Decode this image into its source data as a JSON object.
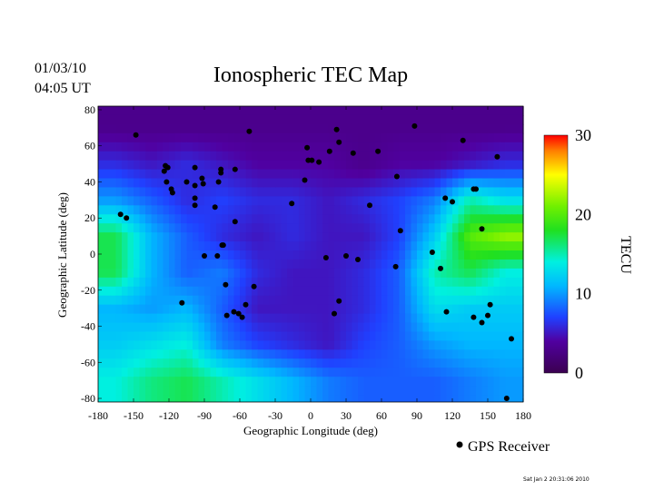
{
  "header": {
    "date": "01/03/10",
    "time": "04:05 UT",
    "footer_timestamp": "Sat Jan  2 20:31:06 2010"
  },
  "chart_data": {
    "type": "heatmap",
    "title": "Ionospheric TEC Map",
    "xlabel": "Geographic Longitude (deg)",
    "ylabel": "Geographic Latitude (deg)",
    "xlim": [
      -180,
      180
    ],
    "ylim": [
      -82,
      82
    ],
    "xticks": [
      "-180",
      "-150",
      "-120",
      "-90",
      "-60",
      "-30",
      "0",
      "30",
      "60",
      "90",
      "120",
      "150",
      "180"
    ],
    "yticks": [
      "80",
      "60",
      "40",
      "20",
      "0",
      "-20",
      "-40",
      "-60",
      "-80"
    ],
    "colorbar": {
      "label": "TECU",
      "range": [
        0,
        30
      ],
      "ticks": [
        "30",
        "20",
        "10",
        "0"
      ],
      "colormap": [
        [
          0,
          "#3b0050"
        ],
        [
          4,
          "#5000a0"
        ],
        [
          7,
          "#2040ff"
        ],
        [
          11,
          "#00b8ff"
        ],
        [
          14,
          "#00f0e0"
        ],
        [
          18,
          "#20e020"
        ],
        [
          21,
          "#70f000"
        ],
        [
          25,
          "#ffff00"
        ],
        [
          28,
          "#ff8000"
        ],
        [
          30,
          "#ff0000"
        ]
      ]
    },
    "grid_lon": [
      -165,
      -135,
      -105,
      -75,
      -45,
      -15,
      15,
      45,
      75,
      105,
      135,
      165
    ],
    "grid_lat": [
      70,
      50,
      30,
      10,
      -10,
      -30,
      -50,
      -70
    ],
    "tec_values": [
      [
        3,
        3,
        3,
        3,
        3,
        3,
        3,
        3,
        3,
        3,
        3,
        3
      ],
      [
        6,
        5,
        6,
        5,
        4,
        4,
        4,
        3,
        4,
        4,
        5,
        6
      ],
      [
        10,
        8,
        6,
        7,
        6,
        6,
        5,
        6,
        7,
        9,
        15,
        13
      ],
      [
        17,
        11,
        8,
        6,
        5,
        6,
        5,
        5,
        7,
        12,
        20,
        22
      ],
      [
        17,
        11,
        8,
        9,
        6,
        5,
        5,
        6,
        8,
        15,
        17,
        14
      ],
      [
        11,
        10,
        11,
        8,
        5,
        5,
        5,
        6,
        8,
        13,
        12,
        12
      ],
      [
        12,
        13,
        14,
        9,
        7,
        6,
        5,
        7,
        8,
        10,
        11,
        11
      ],
      [
        14,
        16,
        17,
        15,
        13,
        11,
        9,
        8,
        8,
        8,
        9,
        10
      ]
    ],
    "legend": {
      "marker": "black-dot",
      "label": "GPS Receiver",
      "position": "bottom-right"
    },
    "gps_receivers": [
      [
        -148,
        66
      ],
      [
        -161,
        22
      ],
      [
        -156,
        20
      ],
      [
        -123,
        49
      ],
      [
        -121,
        48
      ],
      [
        -124,
        46
      ],
      [
        -122,
        40
      ],
      [
        -118,
        36
      ],
      [
        -117,
        34
      ],
      [
        -109,
        -27
      ],
      [
        -98,
        48
      ],
      [
        -105,
        40
      ],
      [
        -98,
        38
      ],
      [
        -92,
        42
      ],
      [
        -91,
        39
      ],
      [
        -98,
        31
      ],
      [
        -98,
        27
      ],
      [
        -76,
        47
      ],
      [
        -76,
        45
      ],
      [
        -64,
        47
      ],
      [
        -78,
        40
      ],
      [
        -81,
        26
      ],
      [
        -64,
        18
      ],
      [
        -74,
        5
      ],
      [
        -90,
        -1
      ],
      [
        -79,
        -1
      ],
      [
        -75,
        5
      ],
      [
        -72,
        -17
      ],
      [
        -71,
        -34
      ],
      [
        -65,
        -32
      ],
      [
        -61,
        -33
      ],
      [
        -58,
        -35
      ],
      [
        -55,
        -28
      ],
      [
        -48,
        -18
      ],
      [
        -52,
        68
      ],
      [
        -16,
        28
      ],
      [
        -5,
        41
      ],
      [
        -2,
        52
      ],
      [
        -3,
        59
      ],
      [
        1,
        52
      ],
      [
        7,
        51
      ],
      [
        22,
        69
      ],
      [
        24,
        62
      ],
      [
        16,
        57
      ],
      [
        36,
        56
      ],
      [
        57,
        57
      ],
      [
        50,
        27
      ],
      [
        73,
        43
      ],
      [
        76,
        13
      ],
      [
        72,
        -7
      ],
      [
        13,
        -2
      ],
      [
        30,
        -1
      ],
      [
        40,
        -3
      ],
      [
        24,
        -26
      ],
      [
        20,
        -33
      ],
      [
        88,
        71
      ],
      [
        129,
        63
      ],
      [
        158,
        54
      ],
      [
        114,
        31
      ],
      [
        138,
        36
      ],
      [
        140,
        36
      ],
      [
        145,
        14
      ],
      [
        120,
        29
      ],
      [
        103,
        1
      ],
      [
        110,
        -8
      ],
      [
        115,
        -32
      ],
      [
        138,
        -35
      ],
      [
        145,
        -38
      ],
      [
        150,
        -34
      ],
      [
        152,
        -28
      ],
      [
        170,
        -47
      ],
      [
        166,
        -80
      ]
    ]
  }
}
